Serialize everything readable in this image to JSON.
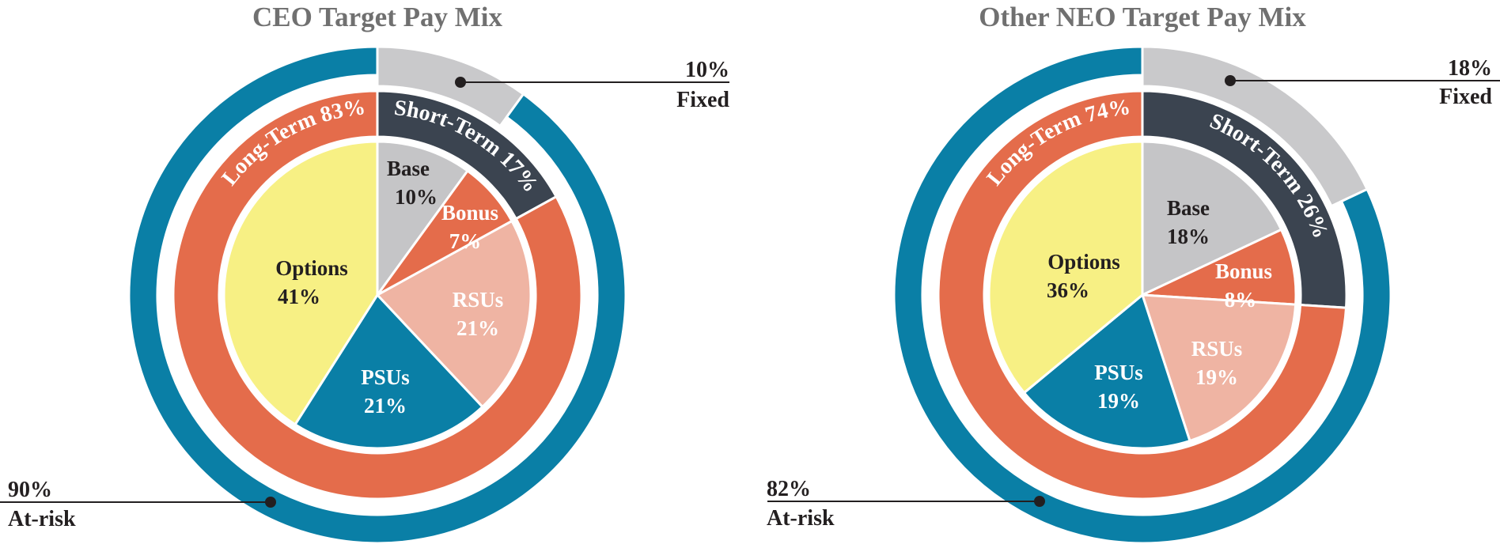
{
  "colors": {
    "fixed": "#c9c9cb",
    "at_risk": "#0a7fa6",
    "long_term": "#e46c4b",
    "short_term": "#3b4450",
    "base": "#c5c5c7",
    "bonus": "#e46c4b",
    "rsus": "#efb4a3",
    "psus": "#0a7fa6",
    "options": "#f7f084",
    "title": "#707070",
    "text_dark": "#231f20",
    "text_light": "#ffffff"
  },
  "chart_data": [
    {
      "type": "pie",
      "title": "CEO Target Pay Mix",
      "inner": {
        "categories": [
          "Base",
          "Bonus",
          "RSUs",
          "PSUs",
          "Options"
        ],
        "values": [
          10,
          7,
          21,
          21,
          41
        ],
        "labels": [
          "10%",
          "7%",
          "21%",
          "21%",
          "41%"
        ]
      },
      "middle": {
        "categories": [
          "Short-Term",
          "Long-Term"
        ],
        "values": [
          17,
          83
        ],
        "labels": [
          "Short-Term 17%",
          "Long-Term 83%"
        ]
      },
      "outer": {
        "categories": [
          "Fixed",
          "At-risk"
        ],
        "values": [
          10,
          90
        ],
        "pct_labels": [
          "10%",
          "90%"
        ]
      }
    },
    {
      "type": "pie",
      "title": "Other NEO Target Pay Mix",
      "inner": {
        "categories": [
          "Base",
          "Bonus",
          "RSUs",
          "PSUs",
          "Options"
        ],
        "values": [
          18,
          8,
          19,
          19,
          36
        ],
        "labels": [
          "18%",
          "8%",
          "19%",
          "19%",
          "36%"
        ]
      },
      "middle": {
        "categories": [
          "Short-Term",
          "Long-Term"
        ],
        "values": [
          26,
          74
        ],
        "labels": [
          "Short-Term 26%",
          "Long-Term 74%"
        ]
      },
      "outer": {
        "categories": [
          "Fixed",
          "At-risk"
        ],
        "values": [
          18,
          82
        ],
        "pct_labels": [
          "18%",
          "82%"
        ]
      }
    }
  ]
}
